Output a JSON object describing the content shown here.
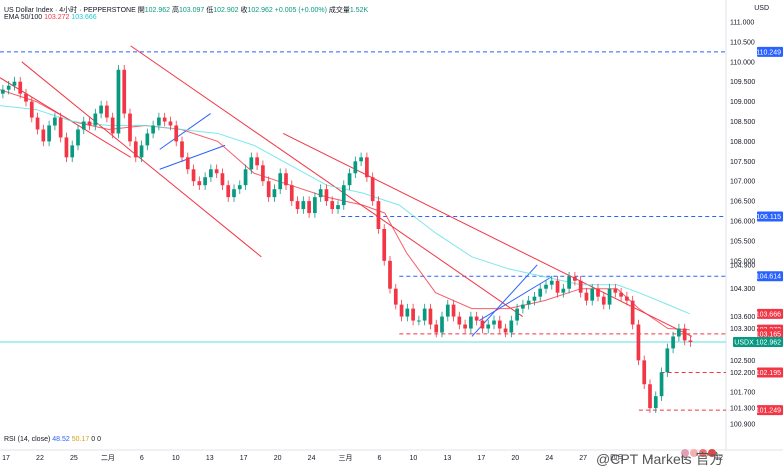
{
  "header": {
    "symbol": "US Dollar Index · 4小时 · PEPPERSTONE",
    "o_label": "開",
    "o": "102.962",
    "h_label": "高",
    "h": "103.097",
    "l_label": "低",
    "l": "102.902",
    "c_label": "收",
    "c": "102.962",
    "chg": "+0.005 (+0.00%)",
    "vol_label": "成交量",
    "vol": "1.52K",
    "ema_label": "EMA 50/100",
    "ema50": "103.272",
    "ema100": "103.666",
    "currency": "USD"
  },
  "rsi": {
    "label": "RSI (14, close)",
    "v1": "48.52",
    "v2": "50.17",
    "v3": "0",
    "v4": "0"
  },
  "watermark": "@CPT Markets 官方",
  "colors": {
    "up": "#089981",
    "down": "#f23645",
    "ema50": "#f23645",
    "ema100": "#5ce1e6",
    "channel_red": "#f23645",
    "channel_blue": "#2962ff",
    "level_blue": "#2962ff",
    "level_red": "#f23645"
  },
  "chart_data": {
    "type": "candlestick",
    "ylim": [
      100.7,
      111.0
    ],
    "y_ticks": [
      "111.000",
      "110.500",
      "110.000",
      "109.500",
      "109.000",
      "108.500",
      "108.000",
      "107.500",
      "107.000",
      "106.500",
      "106.000",
      "105.500",
      "105.000",
      "104.900",
      "104.300",
      "103.600",
      "103.300",
      "102.500",
      "102.200",
      "101.700",
      "101.300",
      "100.900"
    ],
    "x_ticks": [
      "17",
      "22",
      "25",
      "二月",
      "6",
      "10",
      "13",
      "17",
      "20",
      "24",
      "三月",
      "6",
      "10",
      "13",
      "17",
      "20",
      "24",
      "27",
      "四月",
      "4",
      "9",
      "12"
    ],
    "price_tags": [
      {
        "label": "110.249",
        "value": 110.249,
        "color": "#2962ff"
      },
      {
        "label": "106.115",
        "value": 106.115,
        "color": "#2962ff"
      },
      {
        "label": "104.614",
        "value": 104.614,
        "color": "#2962ff"
      },
      {
        "label": "103.666",
        "value": 103.666,
        "color": "#f23645"
      },
      {
        "label": "103.272",
        "value": 103.272,
        "color": "#f23645"
      },
      {
        "label": "103.165",
        "value": 103.165,
        "color": "#f23645"
      },
      {
        "label": "102.962",
        "value": 102.962,
        "color": "#089981",
        "prefix": "USDX"
      },
      {
        "label": "102.195",
        "value": 102.195,
        "color": "#f23645"
      },
      {
        "label": "101.249",
        "value": 101.249,
        "color": "#f23645"
      }
    ],
    "levels": [
      {
        "value": 110.249,
        "color": "#2962ff",
        "style": "dashed",
        "from": 0
      },
      {
        "value": 106.115,
        "color": "#2962ff",
        "style": "dashed",
        "from": 0.47
      },
      {
        "value": 104.614,
        "color": "#2962ff",
        "style": "dashed",
        "from": 0.55
      },
      {
        "value": 103.165,
        "color": "#f23645",
        "style": "dashed",
        "from": 0.55
      },
      {
        "value": 102.962,
        "color": "#5ce1e6",
        "style": "solid",
        "from": 0
      },
      {
        "value": 102.195,
        "color": "#f23645",
        "style": "dashed",
        "from": 0.91
      },
      {
        "value": 101.249,
        "color": "#f23645",
        "style": "dashed",
        "from": 0.88
      }
    ],
    "series": [
      {
        "name": "EMA 50",
        "color": "#f23645",
        "points": [
          [
            0,
            109.3
          ],
          [
            0.05,
            109.0
          ],
          [
            0.1,
            108.5
          ],
          [
            0.15,
            108.3
          ],
          [
            0.2,
            108.4
          ],
          [
            0.25,
            108.3
          ],
          [
            0.3,
            108.0
          ],
          [
            0.35,
            107.2
          ],
          [
            0.4,
            106.9
          ],
          [
            0.45,
            106.6
          ],
          [
            0.5,
            106.4
          ],
          [
            0.53,
            106.2
          ],
          [
            0.56,
            105.2
          ],
          [
            0.6,
            104.2
          ],
          [
            0.65,
            103.8
          ],
          [
            0.7,
            103.8
          ],
          [
            0.75,
            104.0
          ],
          [
            0.8,
            104.3
          ],
          [
            0.85,
            104.3
          ],
          [
            0.88,
            103.8
          ],
          [
            0.92,
            103.3
          ],
          [
            0.95,
            103.27
          ]
        ]
      },
      {
        "name": "EMA 100",
        "color": "#5ce1e6",
        "points": [
          [
            0,
            108.9
          ],
          [
            0.05,
            108.8
          ],
          [
            0.1,
            108.5
          ],
          [
            0.15,
            108.4
          ],
          [
            0.2,
            108.4
          ],
          [
            0.25,
            108.3
          ],
          [
            0.3,
            108.2
          ],
          [
            0.35,
            107.9
          ],
          [
            0.4,
            107.4
          ],
          [
            0.45,
            106.9
          ],
          [
            0.5,
            106.7
          ],
          [
            0.55,
            106.4
          ],
          [
            0.6,
            105.7
          ],
          [
            0.65,
            105.1
          ],
          [
            0.7,
            104.8
          ],
          [
            0.75,
            104.6
          ],
          [
            0.8,
            104.4
          ],
          [
            0.85,
            104.4
          ],
          [
            0.88,
            104.2
          ],
          [
            0.92,
            103.9
          ],
          [
            0.95,
            103.67
          ]
        ]
      }
    ],
    "trendlines": [
      {
        "color": "#f23645",
        "points": [
          [
            0.03,
            110.0
          ],
          [
            0.36,
            105.1
          ]
        ]
      },
      {
        "color": "#f23645",
        "points": [
          [
            0.18,
            110.4
          ],
          [
            0.72,
            103.6
          ]
        ]
      },
      {
        "color": "#f23645",
        "points": [
          [
            0.39,
            108.2
          ],
          [
            0.953,
            103.1
          ]
        ]
      },
      {
        "color": "#f23645",
        "points": [
          [
            0.0,
            109.6
          ],
          [
            0.18,
            107.6
          ]
        ]
      },
      {
        "color": "#2962ff",
        "points": [
          [
            0.22,
            107.8
          ],
          [
            0.29,
            108.7
          ]
        ]
      },
      {
        "color": "#2962ff",
        "points": [
          [
            0.22,
            107.3
          ],
          [
            0.31,
            107.9
          ]
        ]
      },
      {
        "color": "#2962ff",
        "points": [
          [
            0.65,
            103.1
          ],
          [
            0.74,
            104.9
          ]
        ]
      },
      {
        "color": "#2962ff",
        "points": [
          [
            0.66,
            103.5
          ],
          [
            0.76,
            104.6
          ]
        ]
      }
    ],
    "candles_close": [
      109.3,
      109.4,
      109.5,
      109.2,
      109.0,
      108.6,
      108.3,
      108.0,
      108.4,
      108.6,
      108.1,
      107.6,
      107.9,
      108.3,
      108.5,
      108.4,
      108.7,
      108.9,
      108.6,
      108.2,
      109.8,
      108.7,
      108.0,
      107.6,
      107.9,
      108.2,
      108.4,
      108.6,
      108.5,
      108.4,
      108.0,
      107.6,
      107.3,
      107.0,
      106.9,
      107.1,
      107.3,
      107.2,
      106.9,
      106.6,
      106.8,
      106.9,
      107.3,
      107.6,
      107.4,
      107.0,
      106.6,
      106.8,
      107.2,
      106.9,
      106.5,
      106.3,
      106.5,
      106.2,
      106.6,
      106.8,
      106.5,
      106.3,
      106.4,
      106.9,
      107.2,
      107.5,
      107.6,
      107.1,
      106.5,
      105.8,
      105.0,
      104.3,
      103.9,
      103.6,
      103.8,
      103.5,
      103.5,
      103.8,
      103.4,
      103.2,
      103.6,
      103.9,
      103.6,
      103.4,
      103.3,
      103.6,
      103.5,
      103.3,
      103.4,
      103.5,
      103.3,
      103.2,
      103.5,
      103.8,
      103.9,
      104.0,
      104.1,
      104.3,
      104.4,
      104.5,
      104.2,
      104.3,
      104.6,
      104.5,
      104.2,
      104.0,
      104.3,
      104.1,
      103.9,
      104.3,
      104.2,
      104.1,
      104.0,
      103.4,
      102.5,
      101.9,
      101.3,
      101.6,
      102.2,
      102.8,
      103.1,
      103.3,
      103.0,
      102.96
    ]
  }
}
